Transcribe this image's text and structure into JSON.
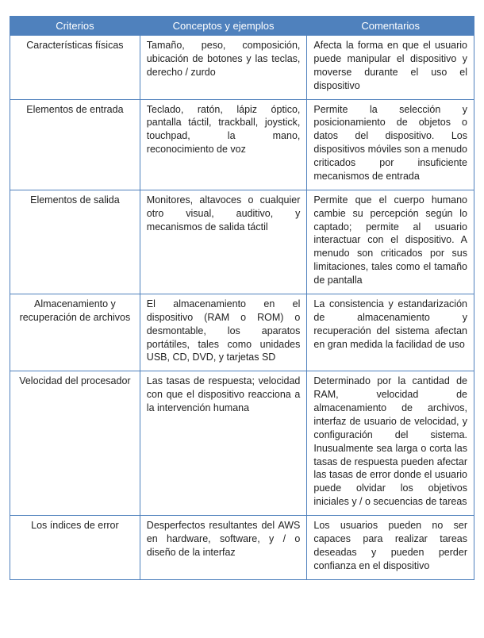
{
  "table": {
    "headers": [
      "Criterios",
      "Conceptos y ejemplos",
      "Comentarios"
    ],
    "rows": [
      {
        "criterio": "Características físicas",
        "conceptos": "Tamaño, peso, composición, ubicación de botones y las teclas, derecho / zurdo",
        "comentarios": "Afecta la forma en que el usuario puede manipular el dispositivo y moverse durante el uso el dispositivo"
      },
      {
        "criterio": "Elementos de entrada",
        "conceptos": "Teclado, ratón, lápiz óptico, pantalla táctil, trackball, joystick, touchpad, la mano, reconocimiento de voz",
        "comentarios": "Permite la selección y posicionamiento de objetos o datos del dispositivo. Los dispositivos móviles son a menudo criticados por insuficiente mecanismos de entrada"
      },
      {
        "criterio": "Elementos de salida",
        "conceptos": "Monitores, altavoces o cualquier otro visual, auditivo, y mecanismos de salida táctil",
        "comentarios": "Permite que el cuerpo humano cambie su percepción según lo captado; permite al usuario interactuar con el dispositivo. A menudo son criticados por sus limitaciones, tales como el tamaño de pantalla"
      },
      {
        "criterio": "Almacenamiento y recuperación de archivos",
        "conceptos": "El almacenamiento en el dispositivo (RAM o ROM) o desmontable, los aparatos portátiles, tales como unidades USB, CD, DVD, y tarjetas SD",
        "comentarios": "La consistencia y estandarización de almacenamiento y recuperación del sistema afectan en gran medida la facilidad de uso"
      },
      {
        "criterio": "Velocidad del procesador",
        "conceptos": "Las tasas de respuesta; velocidad con que el dispositivo reacciona a la intervención humana",
        "comentarios": "Determinado por la cantidad de RAM, velocidad de almacenamiento de archivos, interfaz de usuario de velocidad, y configuración del sistema. Inusualmente sea larga o corta las tasas de respuesta pueden afectar las tasas de error donde el usuario puede olvidar los objetivos iniciales y / o secuencias de tareas"
      },
      {
        "criterio": "Los índices de error",
        "conceptos": "Desperfectos resultantes del AWS en hardware, software, y / o diseño de la interfaz",
        "comentarios": "Los usuarios pueden no ser capaces para realizar tareas deseadas y pueden perder confianza en el dispositivo"
      }
    ]
  }
}
